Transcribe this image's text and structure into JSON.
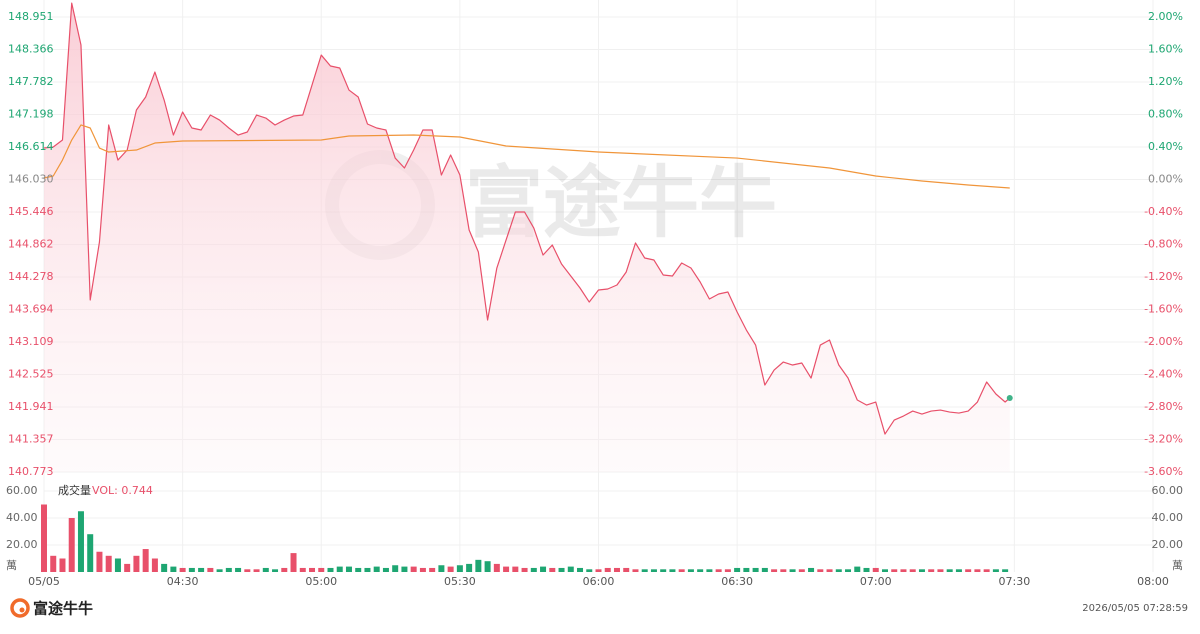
{
  "chart_data": [
    {
      "type": "line",
      "xlim": [
        0,
        240
      ],
      "ylim": [
        140.773,
        148.951
      ],
      "yticks": [
        148.951,
        148.366,
        147.782,
        147.198,
        146.614,
        {
          "value": 146.03,
          "label": "146.030"
        },
        145.446,
        144.862,
        144.278,
        143.694,
        143.109,
        142.525,
        141.941,
        141.357,
        140.773
      ],
      "y2lim": [
        -3.6,
        2.0
      ],
      "y2ticks": [
        {
          "value": 2,
          "label": "2.00%"
        },
        {
          "value": 1.6,
          "label": "1.60%"
        },
        {
          "value": 1.2,
          "label": "1.20%"
        },
        {
          "value": 0.8,
          "label": "0.80%"
        },
        {
          "value": 0.4,
          "label": "0.40%"
        },
        {
          "value": 0,
          "label": "0.00%"
        },
        {
          "value": -0.4,
          "label": "-0.40%"
        },
        {
          "value": -0.8,
          "label": "-0.80%"
        },
        {
          "value": -1.2,
          "label": "-1.20%"
        },
        {
          "value": -1.6,
          "label": "-1.60%"
        },
        {
          "value": -2,
          "label": "-2.00%"
        },
        {
          "value": -2.4,
          "label": "-2.40%"
        },
        {
          "value": -2.8,
          "label": "-2.80%"
        },
        {
          "value": -3.2,
          "label": "-3.20%"
        },
        {
          "value": -3.6,
          "label": "-3.60%"
        }
      ],
      "grid": true,
      "up_color": "#e8506a",
      "down_color": "#1ea672",
      "flat_color": "#888888",
      "series": [
        {
          "color": "#e8506a",
          "area": true,
          "end_dot_color": "#3fb389",
          "x": [
            0,
            2,
            4,
            6,
            8,
            10,
            12,
            14,
            16,
            18,
            20,
            22,
            24,
            26,
            28,
            30,
            32,
            34,
            36,
            38,
            40,
            42,
            44,
            46,
            48,
            50,
            52,
            54,
            56,
            58,
            60,
            62,
            64,
            66,
            68,
            70,
            72,
            74,
            76,
            78,
            80,
            82,
            84,
            86,
            88,
            90,
            92,
            94,
            96,
            98,
            100,
            102,
            104,
            106,
            108,
            110,
            112,
            114,
            116,
            118,
            120,
            122,
            124,
            126,
            128,
            130,
            132,
            134,
            136,
            138,
            140,
            142,
            144,
            146,
            148,
            150,
            152,
            154,
            156,
            158,
            160,
            162,
            164,
            166,
            168,
            170,
            172,
            174,
            176,
            178,
            180,
            182,
            184,
            186,
            188,
            190,
            192,
            194,
            196,
            198,
            200,
            202,
            204,
            206,
            208,
            209
          ],
          "values": [
            146.596,
            146.614,
            146.74,
            149.2,
            148.447,
            143.864,
            144.907,
            147.01,
            146.38,
            146.56,
            147.279,
            147.513,
            147.962,
            147.459,
            146.83,
            147.243,
            146.956,
            146.92,
            147.189,
            147.099,
            146.956,
            146.83,
            146.884,
            147.189,
            147.135,
            147.01,
            147.099,
            147.171,
            147.189,
            147.728,
            148.267,
            148.07,
            148.034,
            147.638,
            147.513,
            147.028,
            146.956,
            146.92,
            146.416,
            146.237,
            146.56,
            146.92,
            146.92,
            146.111,
            146.47,
            146.111,
            145.122,
            144.727,
            143.505,
            144.439,
            144.943,
            145.446,
            145.446,
            145.158,
            144.673,
            144.853,
            144.511,
            144.296,
            144.08,
            143.828,
            144.044,
            144.062,
            144.134,
            144.368,
            144.889,
            144.619,
            144.583,
            144.314,
            144.296,
            144.53,
            144.44,
            144.188,
            143.882,
            143.972,
            144.008,
            143.649,
            143.325,
            143.055,
            142.336,
            142.606,
            142.75,
            142.696,
            142.732,
            142.462,
            143.055,
            143.145,
            142.696,
            142.462,
            142.067,
            141.977,
            142.031,
            141.455,
            141.707,
            141.779,
            141.868,
            141.814,
            141.868,
            141.886,
            141.85,
            141.832,
            141.868,
            142.031,
            142.39,
            142.175,
            142.031,
            142.103
          ]
        },
        {
          "color": "#f0953a",
          "x": [
            0,
            2,
            4,
            6,
            8,
            10,
            12,
            14,
            20,
            24,
            30,
            60,
            66,
            80,
            90,
            100,
            120,
            150,
            170,
            180,
            190,
            200,
            209
          ],
          "values": [
            146.057,
            146.093,
            146.38,
            146.74,
            147.01,
            146.956,
            146.596,
            146.524,
            146.56,
            146.686,
            146.722,
            146.74,
            146.812,
            146.83,
            146.794,
            146.632,
            146.524,
            146.416,
            146.237,
            146.093,
            146.003,
            145.931,
            145.877
          ]
        }
      ]
    },
    {
      "type": "bar",
      "title": "成交量",
      "annotation": "VOL: 0.744",
      "y_unit": "萬",
      "xlim": [
        0,
        240
      ],
      "xticks": [
        {
          "value": 0,
          "label": "05/05"
        },
        {
          "value": 30,
          "label": "04:30"
        },
        {
          "value": 60,
          "label": "05:00"
        },
        {
          "value": 90,
          "label": "05:30"
        },
        {
          "value": 120,
          "label": "06:00"
        },
        {
          "value": 150,
          "label": "06:30"
        },
        {
          "value": 180,
          "label": "07:00"
        },
        {
          "value": 210,
          "label": "07:30"
        },
        {
          "value": 240,
          "label": "08:00"
        }
      ],
      "ylim": [
        0,
        60
      ],
      "yticks": [
        {
          "value": 60,
          "label": "60.00"
        },
        {
          "value": 40,
          "label": "40.00"
        },
        {
          "value": 20,
          "label": "20.00"
        }
      ],
      "grid": true,
      "up_color": "#e8506a",
      "down_color": "#1ea672",
      "x": [
        0,
        2,
        4,
        6,
        8,
        10,
        12,
        14,
        16,
        18,
        20,
        22,
        24,
        26,
        28,
        30,
        32,
        34,
        36,
        38,
        40,
        42,
        44,
        46,
        48,
        50,
        52,
        54,
        56,
        58,
        60,
        62,
        64,
        66,
        68,
        70,
        72,
        74,
        76,
        78,
        80,
        82,
        84,
        86,
        88,
        90,
        92,
        94,
        96,
        98,
        100,
        102,
        104,
        106,
        108,
        110,
        112,
        114,
        116,
        118,
        120,
        122,
        124,
        126,
        128,
        130,
        132,
        134,
        136,
        138,
        140,
        142,
        144,
        146,
        148,
        150,
        152,
        154,
        156,
        158,
        160,
        162,
        164,
        166,
        168,
        170,
        172,
        174,
        176,
        178,
        180,
        182,
        184,
        186,
        188,
        190,
        192,
        194,
        196,
        198,
        200,
        202,
        204,
        206,
        208
      ],
      "values": [
        50,
        12,
        10,
        40,
        45,
        28,
        15,
        12,
        10,
        6,
        12,
        17,
        10,
        6,
        4,
        3,
        3,
        3,
        3,
        2,
        3,
        3,
        2,
        2,
        3,
        2,
        3,
        14,
        3,
        3,
        3,
        3,
        4,
        4,
        3,
        3,
        4,
        3,
        5,
        4,
        4,
        3,
        3,
        5,
        4,
        5,
        6,
        9,
        8,
        6,
        4,
        4,
        3,
        3,
        4,
        3,
        3,
        4,
        3,
        2,
        2,
        3,
        3,
        3,
        2,
        2,
        2,
        2,
        2,
        2,
        2,
        2,
        2,
        2,
        2,
        3,
        3,
        3,
        3,
        2,
        2,
        2,
        2,
        3,
        2,
        2,
        2,
        2,
        4,
        3,
        3,
        2,
        2,
        2,
        2,
        2,
        2,
        2,
        2,
        2,
        2,
        2,
        2,
        2,
        2
      ]
    }
  ],
  "watermark": "富途牛牛",
  "footer": {
    "brand": "富途牛牛",
    "timestamp": "2026/05/05 07:28:59"
  }
}
